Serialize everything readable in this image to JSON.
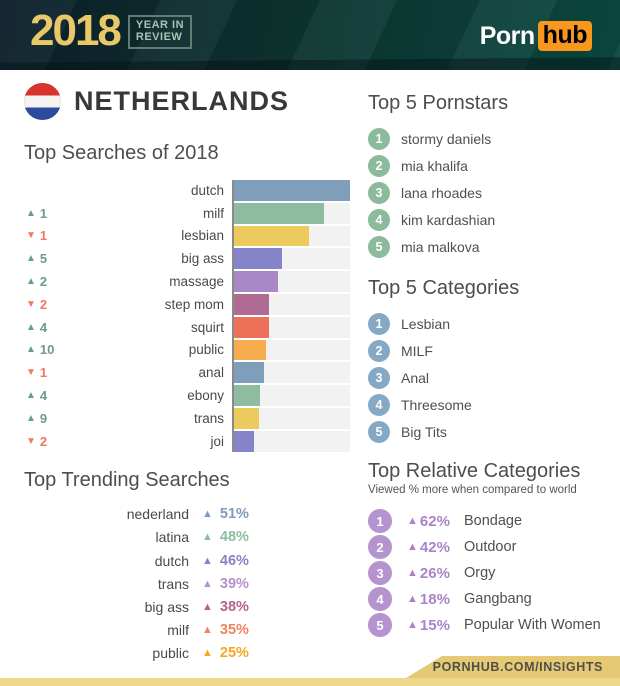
{
  "header": {
    "year": "2018",
    "year_label_line1": "YEAR IN",
    "year_label_line2": "REVIEW",
    "brand_porn": "Porn",
    "brand_hub": "hub"
  },
  "country": {
    "name": "NETHERLANDS"
  },
  "flag": {
    "top": "#d6342c",
    "middle": "#f4f3f1",
    "bottom": "#2d4a9e"
  },
  "icons": {
    "up_arrow": "▲",
    "down_arrow": "▼"
  },
  "chart_data": {
    "type": "bar",
    "title": "Top Searches of 2018",
    "orientation": "horizontal",
    "categories": [
      "dutch",
      "milf",
      "lesbian",
      "big ass",
      "massage",
      "step mom",
      "squirt",
      "public",
      "anal",
      "ebony",
      "trans",
      "joi"
    ],
    "values": [
      100,
      78,
      65,
      42,
      39,
      31,
      31,
      29,
      27,
      24,
      23,
      19
    ],
    "value_note": "bar lengths relative to top search; no numeric labels shown",
    "xlim": [
      0,
      100
    ],
    "rank_changes": [
      null,
      {
        "direction": "up",
        "amount": "1"
      },
      {
        "direction": "down",
        "amount": "1"
      },
      {
        "direction": "up",
        "amount": "5"
      },
      {
        "direction": "up",
        "amount": "2"
      },
      {
        "direction": "down",
        "amount": "2"
      },
      {
        "direction": "up",
        "amount": "4"
      },
      {
        "direction": "up",
        "amount": "10"
      },
      {
        "direction": "down",
        "amount": "1"
      },
      {
        "direction": "up",
        "amount": "4"
      },
      {
        "direction": "up",
        "amount": "9"
      },
      {
        "direction": "down",
        "amount": "2"
      }
    ],
    "bar_colors": [
      "#7e9eba",
      "#8fbc9e",
      "#ecca5d",
      "#8584c8",
      "#aa88c8",
      "#b06b93",
      "#ed7158",
      "#f8ac50",
      "#7e9eba",
      "#8fbc9e",
      "#ecca5d",
      "#8584c8"
    ],
    "up_color": "#699e80",
    "down_color": "#f0785e",
    "row_bg": "#f2f2f3"
  },
  "pornstars": {
    "title": "Top 5 Pornstars",
    "badge_color": "#8cba9d",
    "items": [
      "stormy daniels",
      "mia khalifa",
      "lana rhoades",
      "kim kardashian",
      "mia malkova"
    ]
  },
  "top_categories": {
    "title": "Top 5 Categories",
    "badge_color": "#85a9c5",
    "items": [
      "Lesbian",
      "MILF",
      "Anal",
      "Threesome",
      "Big Tits"
    ]
  },
  "trending": {
    "title": "Top Trending Searches",
    "items": [
      {
        "label": "nederland",
        "pct": "51%",
        "color": "#7f9cb8"
      },
      {
        "label": "latina",
        "pct": "48%",
        "color": "#8dbb9e"
      },
      {
        "label": "dutch",
        "pct": "46%",
        "color": "#8a7fc0"
      },
      {
        "label": "trans",
        "pct": "39%",
        "color": "#b492cc"
      },
      {
        "label": "big ass",
        "pct": "38%",
        "color": "#b3638f"
      },
      {
        "label": "milf",
        "pct": "35%",
        "color": "#f08163"
      },
      {
        "label": "public",
        "pct": "25%",
        "color": "#f9a51f"
      }
    ]
  },
  "relative_categories": {
    "title": "Top Relative Categories",
    "subtitle": "Viewed % more when compared to world",
    "badge_color": "#b493cf",
    "accent_color": "#a983c9",
    "items": [
      {
        "pct": "62%",
        "label": "Bondage"
      },
      {
        "pct": "42%",
        "label": "Outdoor"
      },
      {
        "pct": "26%",
        "label": "Orgy"
      },
      {
        "pct": "18%",
        "label": "Gangbang"
      },
      {
        "pct": "15%",
        "label": "Popular With Women"
      }
    ]
  },
  "footer": {
    "url": "PORNHUB.COM/INSIGHTS"
  }
}
